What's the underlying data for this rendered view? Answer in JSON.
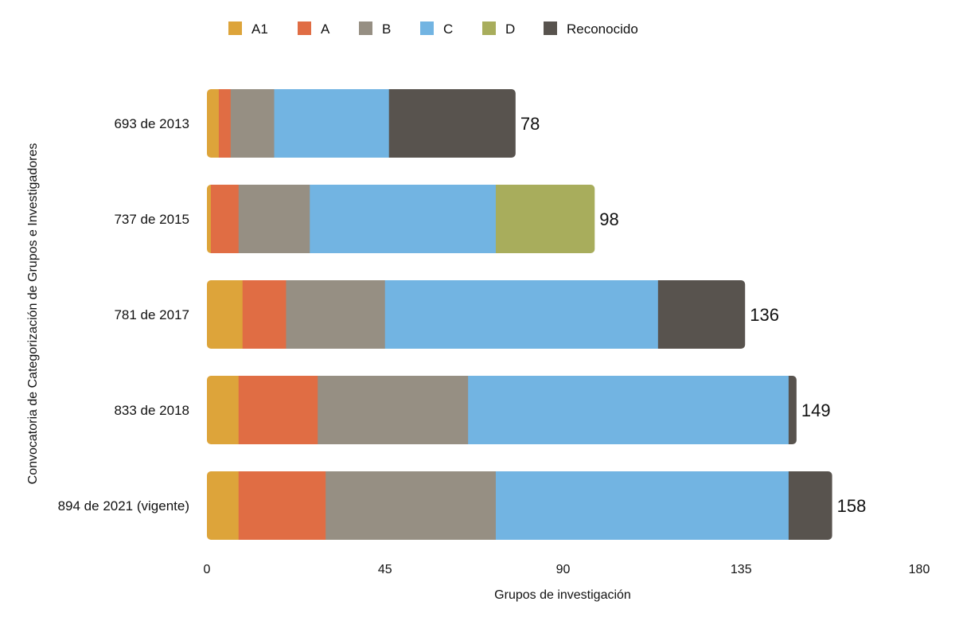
{
  "chart_data": {
    "type": "bar",
    "orientation": "horizontal",
    "stacked": true,
    "categories": [
      "693 de 2013",
      "737 de 2015",
      "781 de 2017",
      "833 de 2018",
      "894 de 2021 (vigente)"
    ],
    "series": [
      {
        "name": "A1",
        "color": "#DDA43A",
        "values": [
          3,
          1,
          9,
          8,
          8
        ]
      },
      {
        "name": "A",
        "color": "#E06D44",
        "values": [
          3,
          7,
          11,
          20,
          22
        ]
      },
      {
        "name": "B",
        "color": "#968F83",
        "values": [
          11,
          18,
          25,
          38,
          43
        ]
      },
      {
        "name": "C",
        "color": "#72B4E2",
        "values": [
          29,
          47,
          69,
          81,
          74
        ]
      },
      {
        "name": "D",
        "color": "#A8AD5C",
        "values": [
          0,
          25,
          0,
          0,
          0
        ]
      },
      {
        "name": "Reconocido",
        "color": "#58534E",
        "values": [
          32,
          0,
          22,
          2,
          11
        ]
      }
    ],
    "totals": [
      78,
      98,
      136,
      149,
      158
    ],
    "xlabel": "Grupos de investigación",
    "ylabel": "Convocatoria de Categorización de Grupos e Investigadores",
    "xlim": [
      0,
      180
    ],
    "xticks": [
      0,
      45,
      90,
      135,
      180
    ],
    "grid": false,
    "legend_position": "top"
  }
}
